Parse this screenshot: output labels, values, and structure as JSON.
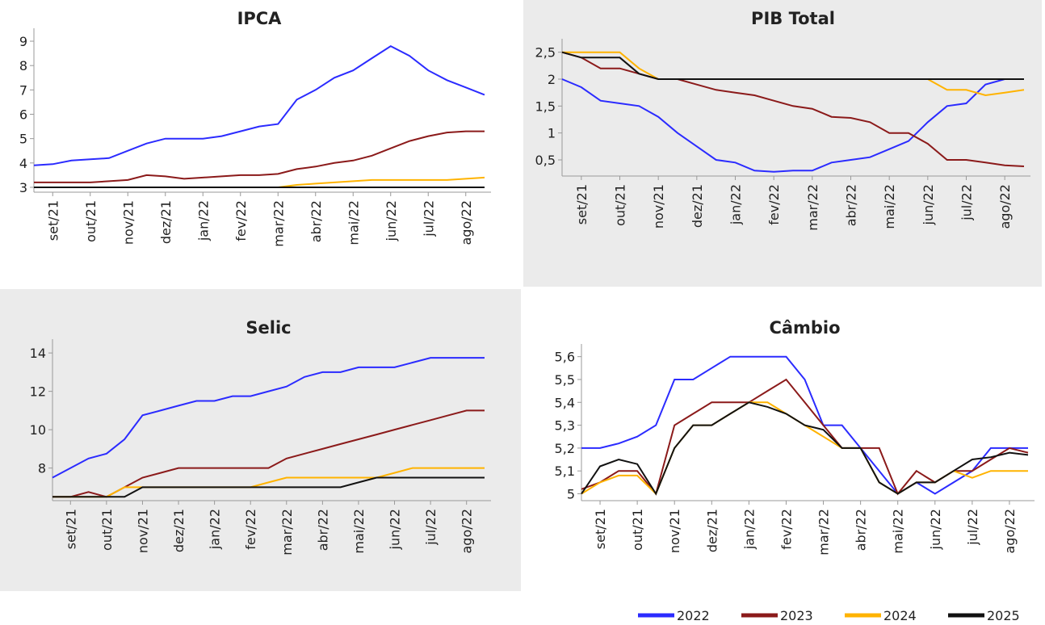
{
  "chart_data": [
    {
      "type": "line",
      "title": "IPCA",
      "x": [
        null,
        "set/21",
        null,
        "out/21",
        null,
        "nov/21",
        null,
        "dez/21",
        null,
        "jan/22",
        null,
        "fev/22",
        null,
        "mar/22",
        null,
        "abr/22",
        null,
        "mai/22",
        null,
        "jun/22",
        null,
        "jul/22",
        null,
        "ago/22",
        null
      ],
      "ylim": [
        2.8,
        9.2
      ],
      "yticks": [
        3,
        4,
        5,
        6,
        7,
        8,
        9
      ],
      "series": [
        {
          "name": "2022",
          "color": "#2b2bff",
          "values": [
            3.9,
            3.95,
            4.1,
            4.15,
            4.2,
            4.5,
            4.8,
            5.0,
            5.0,
            5.0,
            5.1,
            5.3,
            5.5,
            5.6,
            6.6,
            7.0,
            7.5,
            7.8,
            8.3,
            8.8,
            8.4,
            7.8,
            7.4,
            7.1,
            6.8
          ]
        },
        {
          "name": "2023",
          "color": "#8b1a1a",
          "values": [
            3.2,
            3.2,
            3.2,
            3.2,
            3.25,
            3.3,
            3.5,
            3.45,
            3.35,
            3.4,
            3.45,
            3.5,
            3.5,
            3.55,
            3.75,
            3.85,
            4.0,
            4.1,
            4.3,
            4.6,
            4.9,
            5.1,
            5.25,
            5.3,
            5.3
          ]
        },
        {
          "name": "2024",
          "color": "#ffb300",
          "values": [
            3.0,
            3.0,
            3.0,
            3.0,
            3.0,
            3.0,
            3.0,
            3.0,
            3.0,
            3.0,
            3.0,
            3.0,
            3.0,
            3.0,
            3.1,
            3.15,
            3.2,
            3.25,
            3.3,
            3.3,
            3.3,
            3.3,
            3.3,
            3.35,
            3.4
          ]
        },
        {
          "name": "2025",
          "color": "#111111",
          "values": [
            3.0,
            3.0,
            3.0,
            3.0,
            3.0,
            3.0,
            3.0,
            3.0,
            3.0,
            3.0,
            3.0,
            3.0,
            3.0,
            3.0,
            3.0,
            3.0,
            3.0,
            3.0,
            3.0,
            3.0,
            3.0,
            3.0,
            3.0,
            3.0,
            3.0
          ]
        }
      ]
    },
    {
      "type": "line",
      "title": "PIB Total",
      "x": [
        null,
        "set/21",
        null,
        "out/21",
        null,
        "nov/21",
        null,
        "dez/21",
        null,
        "jan/22",
        null,
        "fev/22",
        null,
        "mar/22",
        null,
        "abr/22",
        null,
        "mai/22",
        null,
        "jun/22",
        null,
        "jul/22",
        null,
        "ago/22",
        null
      ],
      "ylim": [
        0.2,
        2.6
      ],
      "yticks": [
        {
          "value": 0.5,
          "label": "0,5"
        },
        1,
        {
          "value": 1.5,
          "label": "1,5"
        },
        2,
        {
          "value": 2.5,
          "label": "2,5"
        }
      ],
      "series": [
        {
          "color": "#2b2bff",
          "values": [
            2.0,
            1.85,
            1.6,
            1.55,
            1.5,
            1.3,
            1.0,
            0.75,
            0.5,
            0.45,
            0.3,
            0.28,
            0.3,
            0.3,
            0.45,
            0.5,
            0.55,
            0.7,
            0.85,
            1.2,
            1.5,
            1.55,
            1.9,
            2.0,
            2.0
          ]
        },
        {
          "color": "#8b1a1a",
          "values": [
            2.5,
            2.4,
            2.2,
            2.2,
            2.1,
            2.0,
            2.0,
            1.9,
            1.8,
            1.75,
            1.7,
            1.6,
            1.5,
            1.45,
            1.3,
            1.28,
            1.2,
            1.0,
            1.0,
            0.8,
            0.5,
            0.5,
            0.45,
            0.4,
            0.38
          ]
        },
        {
          "color": "#ffb300",
          "values": [
            2.5,
            2.5,
            2.5,
            2.5,
            2.2,
            2.0,
            2.0,
            2.0,
            2.0,
            2.0,
            2.0,
            2.0,
            2.0,
            2.0,
            2.0,
            2.0,
            2.0,
            2.0,
            2.0,
            2.0,
            1.8,
            1.8,
            1.7,
            1.75,
            1.8
          ]
        },
        {
          "color": "#111111",
          "values": [
            2.5,
            2.4,
            2.4,
            2.4,
            2.1,
            2.0,
            2.0,
            2.0,
            2.0,
            2.0,
            2.0,
            2.0,
            2.0,
            2.0,
            2.0,
            2.0,
            2.0,
            2.0,
            2.0,
            2.0,
            2.0,
            2.0,
            2.0,
            2.0,
            2.0
          ]
        }
      ]
    },
    {
      "type": "line",
      "title": "Selic",
      "x": [
        null,
        "set/21",
        null,
        "out/21",
        null,
        "nov/21",
        null,
        "dez/21",
        null,
        "jan/22",
        null,
        "fev/22",
        null,
        "mar/22",
        null,
        "abr/22",
        null,
        "mai/22",
        null,
        "jun/22",
        null,
        "jul/22",
        null,
        "ago/22",
        null
      ],
      "ylim": [
        6.3,
        14.3
      ],
      "yticks": [
        8,
        10,
        12,
        14
      ],
      "series": [
        {
          "color": "#2b2bff",
          "values": [
            7.5,
            8.0,
            8.5,
            8.75,
            9.5,
            10.75,
            11.0,
            11.25,
            11.5,
            11.5,
            11.75,
            11.75,
            12.0,
            12.25,
            12.75,
            13.0,
            13.0,
            13.25,
            13.25,
            13.25,
            13.5,
            13.75,
            13.75,
            13.75,
            13.75
          ]
        },
        {
          "color": "#8b1a1a",
          "values": [
            6.5,
            6.5,
            6.75,
            6.5,
            7.0,
            7.5,
            7.75,
            8.0,
            8.0,
            8.0,
            8.0,
            8.0,
            8.0,
            8.5,
            8.75,
            9.0,
            9.25,
            9.5,
            9.75,
            10.0,
            10.25,
            10.5,
            10.75,
            11.0,
            11.0
          ]
        },
        {
          "color": "#ffb300",
          "values": [
            6.5,
            6.5,
            6.5,
            6.5,
            7.0,
            7.0,
            7.0,
            7.0,
            7.0,
            7.0,
            7.0,
            7.0,
            7.25,
            7.5,
            7.5,
            7.5,
            7.5,
            7.5,
            7.5,
            7.75,
            8.0,
            8.0,
            8.0,
            8.0,
            8.0
          ]
        },
        {
          "color": "#111111",
          "values": [
            6.5,
            6.5,
            6.5,
            6.5,
            6.5,
            7.0,
            7.0,
            7.0,
            7.0,
            7.0,
            7.0,
            7.0,
            7.0,
            7.0,
            7.0,
            7.0,
            7.0,
            7.25,
            7.5,
            7.5,
            7.5,
            7.5,
            7.5,
            7.5,
            7.5
          ]
        }
      ]
    },
    {
      "type": "line",
      "title": "Câmbio",
      "x": [
        null,
        "set/21",
        null,
        "out/21",
        null,
        "nov/21",
        null,
        "dez/21",
        null,
        "jan/22",
        null,
        "fev/22",
        null,
        "mar/22",
        null,
        "abr/22",
        null,
        "mai/22",
        null,
        "jun/22",
        null,
        "jul/22",
        null,
        "ago/22",
        null
      ],
      "ylim": [
        4.97,
        5.62
      ],
      "yticks": [
        5,
        {
          "value": 5.1,
          "label": "5,1"
        },
        {
          "value": 5.2,
          "label": "5,2"
        },
        {
          "value": 5.3,
          "label": "5,3"
        },
        {
          "value": 5.4,
          "label": "5,4"
        },
        {
          "value": 5.5,
          "label": "5,5"
        },
        {
          "value": 5.6,
          "label": "5,6"
        }
      ],
      "series": [
        {
          "color": "#2b2bff",
          "values": [
            5.2,
            5.2,
            5.22,
            5.25,
            5.3,
            5.5,
            5.5,
            5.55,
            5.6,
            5.6,
            5.6,
            5.6,
            5.5,
            5.3,
            5.3,
            5.2,
            5.1,
            5.0,
            5.05,
            5.0,
            5.05,
            5.1,
            5.2,
            5.2,
            5.2
          ]
        },
        {
          "color": "#8b1a1a",
          "values": [
            5.02,
            5.05,
            5.1,
            5.1,
            5.0,
            5.3,
            5.35,
            5.4,
            5.4,
            5.4,
            5.45,
            5.5,
            5.4,
            5.3,
            5.2,
            5.2,
            5.2,
            5.0,
            5.1,
            5.05,
            5.1,
            5.1,
            5.15,
            5.2,
            5.18
          ]
        },
        {
          "color": "#ffb300",
          "values": [
            5.0,
            5.05,
            5.08,
            5.08,
            5.0,
            5.2,
            5.3,
            5.3,
            5.35,
            5.4,
            5.4,
            5.35,
            5.3,
            5.25,
            5.2,
            5.2,
            5.05,
            5.0,
            5.05,
            5.05,
            5.1,
            5.07,
            5.1,
            5.1,
            5.1
          ]
        },
        {
          "color": "#111111",
          "values": [
            5.0,
            5.12,
            5.15,
            5.13,
            5.0,
            5.2,
            5.3,
            5.3,
            5.35,
            5.4,
            5.38,
            5.35,
            5.3,
            5.28,
            5.2,
            5.2,
            5.05,
            5.0,
            5.05,
            5.05,
            5.1,
            5.15,
            5.16,
            5.18,
            5.17
          ]
        }
      ]
    }
  ]
}
